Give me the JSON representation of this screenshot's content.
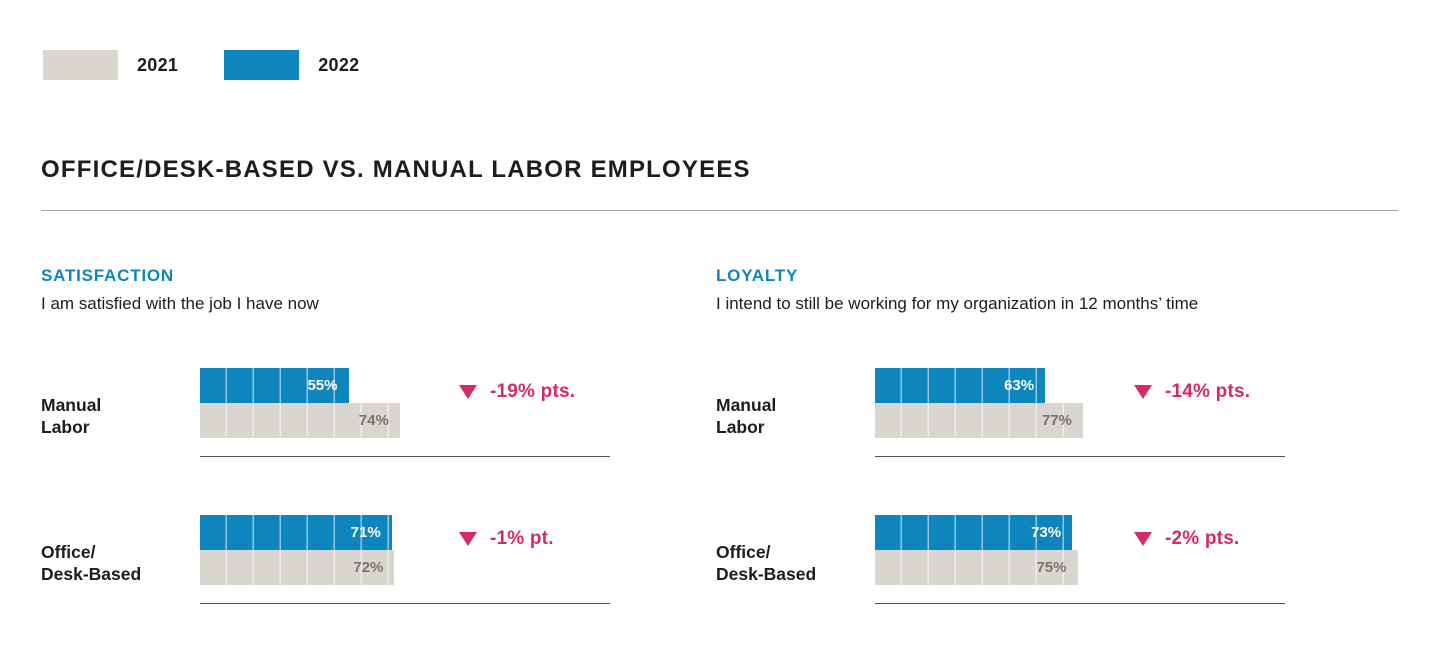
{
  "colors": {
    "blue_2022": "#0e86bd",
    "gray_2021": "#d8d6cf",
    "pink_change": "#d62a63",
    "text_dark": "#1d1d1b",
    "gray_value_text": "#75756e"
  },
  "legend": {
    "items": [
      {
        "label": "2021",
        "color": "#d8d6cf"
      },
      {
        "label": "2022",
        "color": "#0e86bd"
      }
    ]
  },
  "section_title": "OFFICE/DESK-BASED VS. MANUAL LABOR EMPLOYEES",
  "panels": [
    {
      "heading": "SATISFACTION",
      "subtitle": "I am satisfied with the job I have now",
      "rows": [
        {
          "label_line1": "Manual",
          "label_line2": "Labor",
          "v2022": 55,
          "v2022_label": "55%",
          "v2021": 74,
          "v2021_label": "74%",
          "change": "-19% pts."
        },
        {
          "label_line1": "Office/",
          "label_line2": "Desk-Based",
          "v2022": 71,
          "v2022_label": "71%",
          "v2021": 72,
          "v2021_label": "72%",
          "change": "-1% pt."
        }
      ]
    },
    {
      "heading": "LOYALTY",
      "subtitle": "I intend to still be working for my organization in 12 months’ time",
      "rows": [
        {
          "label_line1": "Manual",
          "label_line2": "Labor",
          "v2022": 63,
          "v2022_label": "63%",
          "v2021": 77,
          "v2021_label": "77%",
          "change": "-14% pts."
        },
        {
          "label_line1": "Office/",
          "label_line2": "Desk-Based",
          "v2022": 73,
          "v2022_label": "73%",
          "v2021": 75,
          "v2021_label": "75%",
          "change": "-2% pts."
        }
      ]
    }
  ],
  "chart_data": [
    {
      "type": "bar",
      "orientation": "horizontal",
      "title": "SATISFACTION",
      "subtitle": "I am satisfied with the job I have now",
      "categories": [
        "Manual Labor",
        "Office/Desk-Based"
      ],
      "series": [
        {
          "name": "2022",
          "values": [
            55,
            71
          ]
        },
        {
          "name": "2021",
          "values": [
            74,
            72
          ]
        }
      ],
      "annotations": [
        "-19% pts.",
        "-1% pt."
      ],
      "unit": "%",
      "xlim": [
        0,
        100
      ],
      "grid": false,
      "legend_position": "top-left"
    },
    {
      "type": "bar",
      "orientation": "horizontal",
      "title": "LOYALTY",
      "subtitle": "I intend to still be working for my organization in 12 months’ time",
      "categories": [
        "Manual Labor",
        "Office/Desk-Based"
      ],
      "series": [
        {
          "name": "2022",
          "values": [
            63,
            73
          ]
        },
        {
          "name": "2021",
          "values": [
            77,
            75
          ]
        }
      ],
      "annotations": [
        "-14% pts.",
        "-2% pts."
      ],
      "unit": "%",
      "xlim": [
        0,
        100
      ],
      "grid": false,
      "legend_position": "top-left"
    }
  ]
}
